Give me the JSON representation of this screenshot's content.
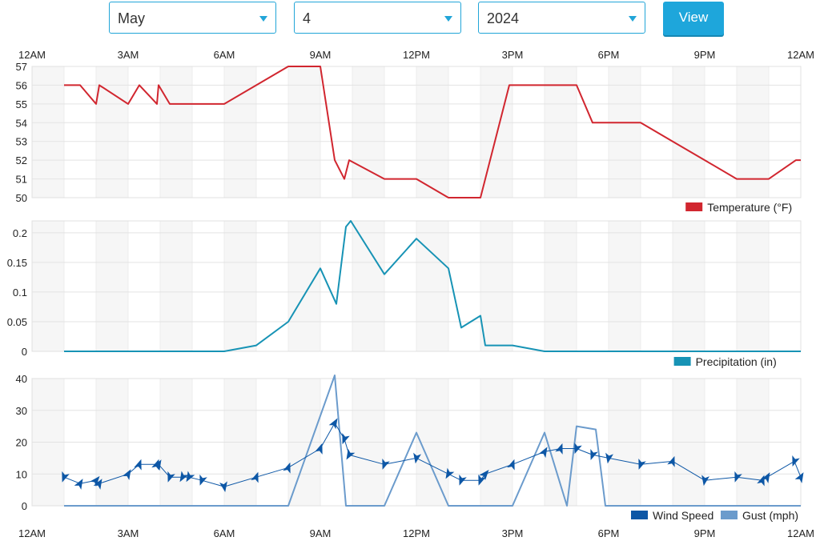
{
  "controls": {
    "month": "May",
    "day": "4",
    "year": "2024",
    "view_label": "View"
  },
  "colors": {
    "temperature": "#d1262f",
    "precipitation": "#1793b5",
    "wind_speed": "#0d57a6",
    "gust": "#6b9bcc",
    "accent": "#22a5d8"
  },
  "chart_data": [
    {
      "type": "line",
      "x_ticks": [
        "12AM",
        "3AM",
        "6AM",
        "9AM",
        "12PM",
        "3PM",
        "6PM",
        "9PM",
        "12AM"
      ],
      "xlim": [
        0,
        24
      ],
      "ylim": [
        50,
        57
      ],
      "y_ticks": [
        "50",
        "51",
        "52",
        "53",
        "54",
        "55",
        "56",
        "57"
      ],
      "grid": true,
      "legend_position": "bottom-right",
      "series": [
        {
          "name": "Temperature (°F)",
          "x": [
            1,
            1.5,
            2,
            2.1,
            3,
            3.35,
            3.9,
            3.95,
            4.3,
            6,
            8,
            9,
            9.45,
            9.75,
            9.9,
            11,
            12,
            13,
            14,
            14.15,
            14.9,
            16,
            17,
            17.5,
            19,
            20,
            21,
            22,
            23,
            23.85,
            24
          ],
          "values": [
            56,
            56,
            55,
            56,
            55,
            56,
            55,
            56,
            55,
            55,
            57,
            57,
            52,
            51,
            52,
            51,
            51,
            50,
            50,
            51,
            56,
            56,
            56,
            54,
            54,
            53,
            52,
            51,
            51,
            52,
            52
          ]
        }
      ]
    },
    {
      "type": "line",
      "x_ticks": [
        "12AM",
        "3AM",
        "6AM",
        "9AM",
        "12PM",
        "3PM",
        "6PM",
        "9PM",
        "12AM"
      ],
      "xlim": [
        0,
        24
      ],
      "ylim": [
        0,
        0.22
      ],
      "y_ticks": [
        "0",
        "0.05",
        "0.1",
        "0.15",
        "0.2"
      ],
      "grid": true,
      "legend_position": "bottom-right",
      "series": [
        {
          "name": "Precipitation (in)",
          "x": [
            1,
            6,
            7,
            8,
            9,
            9.5,
            9.8,
            9.95,
            11,
            12,
            13,
            13.4,
            14,
            14.15,
            15,
            16,
            24
          ],
          "values": [
            0,
            0,
            0.01,
            0.05,
            0.14,
            0.08,
            0.21,
            0.22,
            0.13,
            0.19,
            0.14,
            0.04,
            0.06,
            0.01,
            0.01,
            0,
            0
          ]
        }
      ]
    },
    {
      "type": "line",
      "x_ticks": [
        "12AM",
        "3AM",
        "6AM",
        "9AM",
        "12PM",
        "3PM",
        "6PM",
        "9PM",
        "12AM"
      ],
      "xlim": [
        0,
        24
      ],
      "ylim": [
        0,
        40
      ],
      "y_ticks": [
        "0",
        "10",
        "20",
        "30",
        "40"
      ],
      "grid": true,
      "legend_position": "bottom-right",
      "series": [
        {
          "name": "Wind Speed",
          "x": [
            1,
            1.5,
            2,
            2.1,
            3,
            3.35,
            3.9,
            3.95,
            4.3,
            4.7,
            4.9,
            5.3,
            6,
            7,
            8,
            9,
            9.45,
            9.75,
            9.9,
            11,
            12,
            13,
            13.4,
            14,
            14.15,
            15,
            16,
            16.5,
            17,
            17.5,
            18,
            19,
            20,
            21,
            22,
            22.8,
            22.95,
            23.8,
            24
          ],
          "values": [
            9,
            7,
            8,
            7,
            10,
            13,
            13,
            13,
            9,
            9,
            9,
            8,
            6,
            9,
            12,
            18,
            26,
            21,
            16,
            13,
            15,
            10,
            8,
            8,
            10,
            13,
            17,
            18,
            18,
            16,
            15,
            13,
            14,
            8,
            9,
            8,
            9,
            14,
            9
          ],
          "directions_deg": [
            200,
            30,
            40,
            30,
            30,
            20,
            20,
            30,
            200,
            210,
            210,
            200,
            170,
            20,
            20,
            20,
            30,
            200,
            210,
            200,
            190,
            210,
            200,
            200,
            40,
            20,
            30,
            20,
            200,
            200,
            190,
            200,
            20,
            190,
            200,
            20,
            30,
            200,
            30
          ]
        },
        {
          "name": "Gust (mph)",
          "x": [
            1,
            8,
            9.45,
            9.8,
            11,
            12,
            13,
            15,
            16,
            16.7,
            17,
            17.6,
            17.9,
            24
          ],
          "values": [
            0,
            0,
            41,
            0,
            0,
            23,
            0,
            0,
            23,
            0,
            25,
            24,
            0,
            0
          ]
        }
      ]
    }
  ]
}
